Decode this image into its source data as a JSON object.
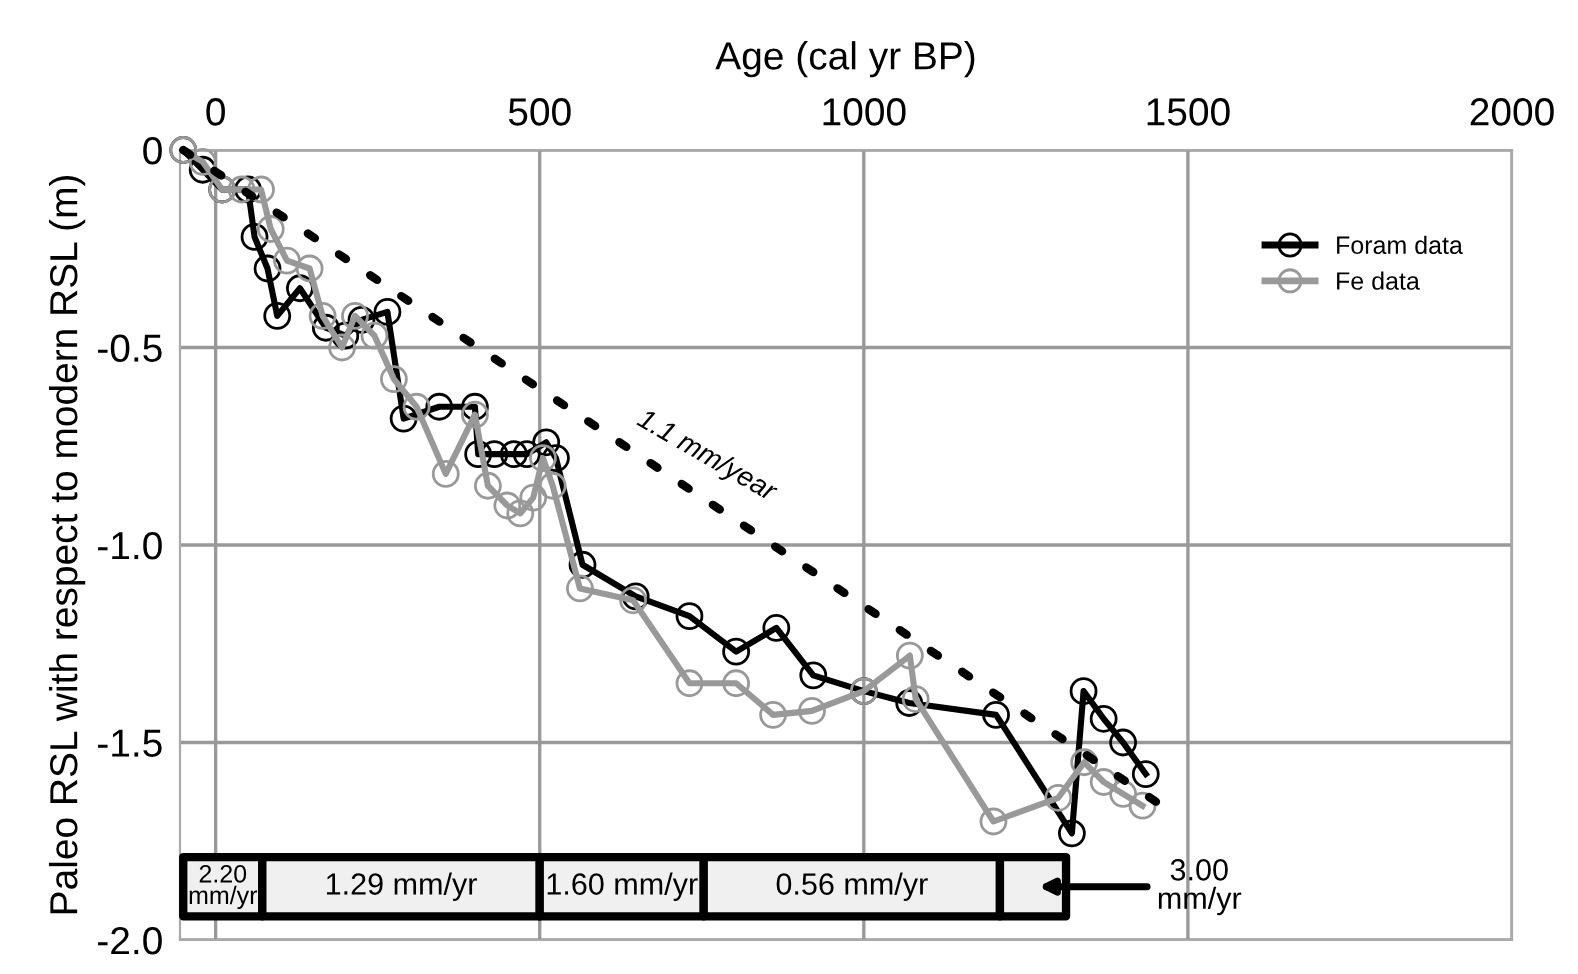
{
  "chart_data": {
    "type": "line",
    "xlabel": "Age (cal yr BP)",
    "ylabel": "Paleo RSL with respect to modern RSL (m)",
    "xlim": [
      -55,
      2000
    ],
    "xticks": [
      0,
      500,
      1000,
      1500,
      2000
    ],
    "ylim": [
      -2.0,
      0
    ],
    "yticks": [
      {
        "value": 0,
        "label": "0"
      },
      {
        "value": -0.5,
        "label": "-0.5"
      },
      {
        "value": -1.0,
        "label": "-1.0"
      },
      {
        "value": -1.5,
        "label": "-1.5"
      },
      {
        "value": -2.0,
        "label": "-2.0"
      }
    ],
    "grid": true,
    "legend": "top right",
    "marker": "circle",
    "series": [
      {
        "name": "Foram data",
        "color": "#000000",
        "x": [
          -50,
          -20,
          10,
          50,
          60,
          80,
          95,
          130,
          170,
          200,
          225,
          265,
          290,
          345,
          400,
          405,
          430,
          460,
          480,
          510,
          525,
          566,
          648,
          731,
          803,
          865,
          922,
          1000,
          1070,
          1204,
          1321,
          1339,
          1370,
          1400,
          1435
        ],
        "values": [
          0,
          -0.05,
          -0.1,
          -0.1,
          -0.22,
          -0.3,
          -0.42,
          -0.35,
          -0.45,
          -0.47,
          -0.43,
          -0.41,
          -0.68,
          -0.65,
          -0.65,
          -0.77,
          -0.77,
          -0.77,
          -0.77,
          -0.74,
          -0.78,
          -1.05,
          -1.13,
          -1.18,
          -1.27,
          -1.21,
          -1.33,
          -1.37,
          -1.4,
          -1.43,
          -1.73,
          -1.37,
          -1.44,
          -1.5,
          -1.58
        ]
      },
      {
        "name": "Fe data",
        "color": "#999999",
        "x": [
          -50,
          -20,
          10,
          40,
          70,
          85,
          110,
          145,
          165,
          195,
          215,
          245,
          275,
          310,
          355,
          400,
          420,
          450,
          470,
          490,
          505,
          520,
          562,
          644,
          731,
          803,
          860,
          920,
          1000,
          1071,
          1080,
          1200,
          1300,
          1340,
          1370,
          1400,
          1430
        ],
        "values": [
          0,
          -0.03,
          -0.1,
          -0.1,
          -0.1,
          -0.2,
          -0.28,
          -0.3,
          -0.42,
          -0.5,
          -0.42,
          -0.47,
          -0.58,
          -0.65,
          -0.82,
          -0.67,
          -0.85,
          -0.9,
          -0.92,
          -0.88,
          -0.78,
          -0.85,
          -1.11,
          -1.14,
          -1.35,
          -1.35,
          -1.43,
          -1.42,
          -1.37,
          -1.28,
          -1.39,
          -1.7,
          -1.64,
          -1.55,
          -1.6,
          -1.63,
          -1.66
        ]
      },
      {
        "type": "line",
        "color": "#000000",
        "line_style": "dotted",
        "marker": "none",
        "x": [
          -50,
          1460
        ],
        "values": [
          0,
          -1.66
        ]
      }
    ],
    "annotations": [
      {
        "text": "1.1 mm/year",
        "x": 731,
        "y": -0.86
      }
    ],
    "bands": [
      {
        "axis": "x",
        "from": -50,
        "to": 72,
        "label": "2.20\nmm/yr",
        "color": "#f0f0f0"
      },
      {
        "axis": "x",
        "from": 72,
        "to": 500,
        "label": "1.29 mm/yr",
        "color": "#f0f0f0"
      },
      {
        "axis": "x",
        "from": 500,
        "to": 753,
        "label": "1.60 mm/yr",
        "color": "#f0f0f0"
      },
      {
        "axis": "x",
        "from": 753,
        "to": 1210,
        "label": "0.56 mm/yr",
        "color": "#f0f0f0"
      },
      {
        "axis": "x",
        "from": 1210,
        "to": 1312,
        "label": "3.00\nmm/yr",
        "color": "#f0f0f0"
      }
    ]
  }
}
